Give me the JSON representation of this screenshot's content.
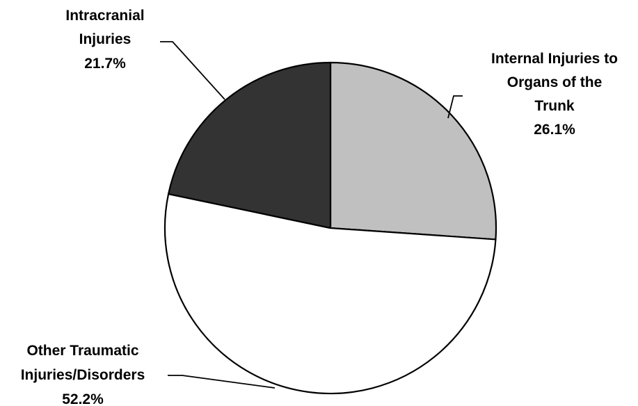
{
  "chart_data": {
    "type": "pie",
    "start": "top",
    "direction": "clockwise",
    "slices": [
      {
        "label": "Internal Injuries to Organs of the Trunk",
        "label_lines": [
          "Internal Injuries to",
          "Organs of the",
          "Trunk"
        ],
        "value": 26.1,
        "value_label": "26.1%",
        "color": "#c0c0c0"
      },
      {
        "label": "Other Traumatic Injuries/Disorders",
        "label_lines": [
          "Other Traumatic",
          "Injuries/Disorders"
        ],
        "value": 52.2,
        "value_label": "52.2%",
        "color": "#ffffff"
      },
      {
        "label": "Intracranial Injuries",
        "label_lines": [
          "Intracranial",
          "Injuries"
        ],
        "value": 21.7,
        "value_label": "21.7%",
        "color": "#333333"
      }
    ]
  }
}
